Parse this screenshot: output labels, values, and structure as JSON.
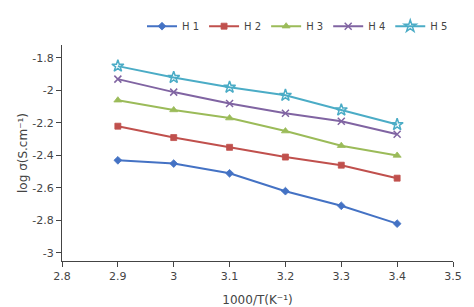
{
  "chart_data": {
    "type": "line",
    "xlabel": "1000/T(K⁻¹)",
    "ylabel": "log σ(S.cm⁻¹)",
    "x": [
      2.9,
      3.0,
      3.1,
      3.2,
      3.3,
      3.4
    ],
    "series": [
      {
        "name": "H 1",
        "color": "#4472C4",
        "marker": "diamond",
        "values": [
          -2.43,
          -2.45,
          -2.51,
          -2.62,
          -2.71,
          -2.82
        ]
      },
      {
        "name": "H 2",
        "color": "#C0504D",
        "marker": "square",
        "values": [
          -2.22,
          -2.29,
          -2.35,
          -2.41,
          -2.46,
          -2.54
        ]
      },
      {
        "name": "H 3",
        "color": "#9BBB59",
        "marker": "triangle-up",
        "values": [
          -2.06,
          -2.12,
          -2.17,
          -2.25,
          -2.34,
          -2.4
        ]
      },
      {
        "name": "H 4",
        "color": "#8064A2",
        "marker": "x",
        "values": [
          -1.93,
          -2.01,
          -2.08,
          -2.14,
          -2.19,
          -2.27
        ]
      },
      {
        "name": "H 5",
        "color": "#4BACC6",
        "marker": "star",
        "values": [
          -1.85,
          -1.92,
          -1.98,
          -2.03,
          -2.12,
          -2.21
        ]
      }
    ],
    "xlim": [
      2.8,
      3.5
    ],
    "ylim": [
      -3.05,
      -1.72
    ],
    "xticks": [
      2.8,
      2.9,
      3,
      3.1,
      3.2,
      3.3,
      3.4,
      3.5
    ],
    "yticks": [
      -3,
      -2.8,
      -2.6,
      -2.4,
      -2.2,
      -2,
      -1.8
    ],
    "grid": false,
    "legend": "upper right"
  }
}
